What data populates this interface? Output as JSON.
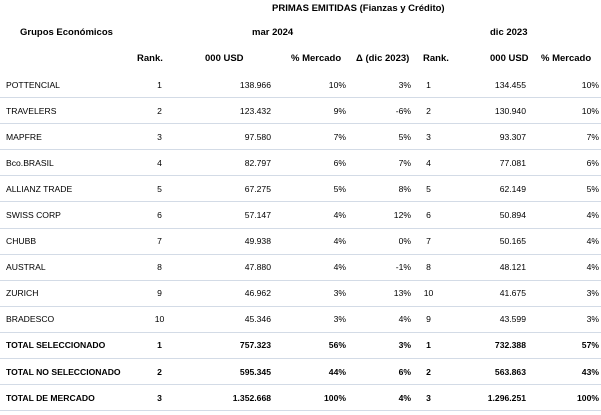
{
  "title": "PRIMAS EMITIDAS (Fianzas y Crédito)",
  "group_label": "Grupos Económicos",
  "period_current": "mar 2024",
  "period_previous": "dic 2023",
  "columns": {
    "rank_current": "Rank.",
    "usd_current": "000 USD",
    "market_current": "% Mercado",
    "delta": "Δ (dic 2023)",
    "rank_previous": "Rank.",
    "usd_previous": "000 USD",
    "market_previous": "% Mercado"
  },
  "rows": [
    {
      "name": "POTTENCIAL",
      "rank": "1",
      "usd": "138.966",
      "market": "10%",
      "delta": "3%",
      "prev_rank": "1",
      "prev_usd": "134.455",
      "prev_market": "10%"
    },
    {
      "name": "TRAVELERS",
      "rank": "2",
      "usd": "123.432",
      "market": "9%",
      "delta": "-6%",
      "prev_rank": "2",
      "prev_usd": "130.940",
      "prev_market": "10%"
    },
    {
      "name": "MAPFRE",
      "rank": "3",
      "usd": "97.580",
      "market": "7%",
      "delta": "5%",
      "prev_rank": "3",
      "prev_usd": "93.307",
      "prev_market": "7%"
    },
    {
      "name": "Bco.BRASIL",
      "rank": "4",
      "usd": "82.797",
      "market": "6%",
      "delta": "7%",
      "prev_rank": "4",
      "prev_usd": "77.081",
      "prev_market": "6%"
    },
    {
      "name": "ALLIANZ TRADE",
      "rank": "5",
      "usd": "67.275",
      "market": "5%",
      "delta": "8%",
      "prev_rank": "5",
      "prev_usd": "62.149",
      "prev_market": "5%"
    },
    {
      "name": "SWISS CORP",
      "rank": "6",
      "usd": "57.147",
      "market": "4%",
      "delta": "12%",
      "prev_rank": "6",
      "prev_usd": "50.894",
      "prev_market": "4%"
    },
    {
      "name": "CHUBB",
      "rank": "7",
      "usd": "49.938",
      "market": "4%",
      "delta": "0%",
      "prev_rank": "7",
      "prev_usd": "50.165",
      "prev_market": "4%"
    },
    {
      "name": "AUSTRAL",
      "rank": "8",
      "usd": "47.880",
      "market": "4%",
      "delta": "-1%",
      "prev_rank": "8",
      "prev_usd": "48.121",
      "prev_market": "4%"
    },
    {
      "name": "ZURICH",
      "rank": "9",
      "usd": "46.962",
      "market": "3%",
      "delta": "13%",
      "prev_rank": "10",
      "prev_usd": "41.675",
      "prev_market": "3%"
    },
    {
      "name": "BRADESCO",
      "rank": "10",
      "usd": "45.346",
      "market": "3%",
      "delta": "4%",
      "prev_rank": "9",
      "prev_usd": "43.599",
      "prev_market": "3%"
    }
  ],
  "totals": [
    {
      "name": "TOTAL SELECCIONADO",
      "rank": "1",
      "usd": "757.323",
      "market": "56%",
      "delta": "3%",
      "prev_rank": "1",
      "prev_usd": "732.388",
      "prev_market": "57%"
    },
    {
      "name": "TOTAL NO SELECCIONADO",
      "rank": "2",
      "usd": "595.345",
      "market": "44%",
      "delta": "6%",
      "prev_rank": "2",
      "prev_usd": "563.863",
      "prev_market": "43%"
    },
    {
      "name": "TOTAL DE MERCADO",
      "rank": "3",
      "usd": "1.352.668",
      "market": "100%",
      "delta": "4%",
      "prev_rank": "3",
      "prev_usd": "1.296.251",
      "prev_market": "100%"
    }
  ]
}
